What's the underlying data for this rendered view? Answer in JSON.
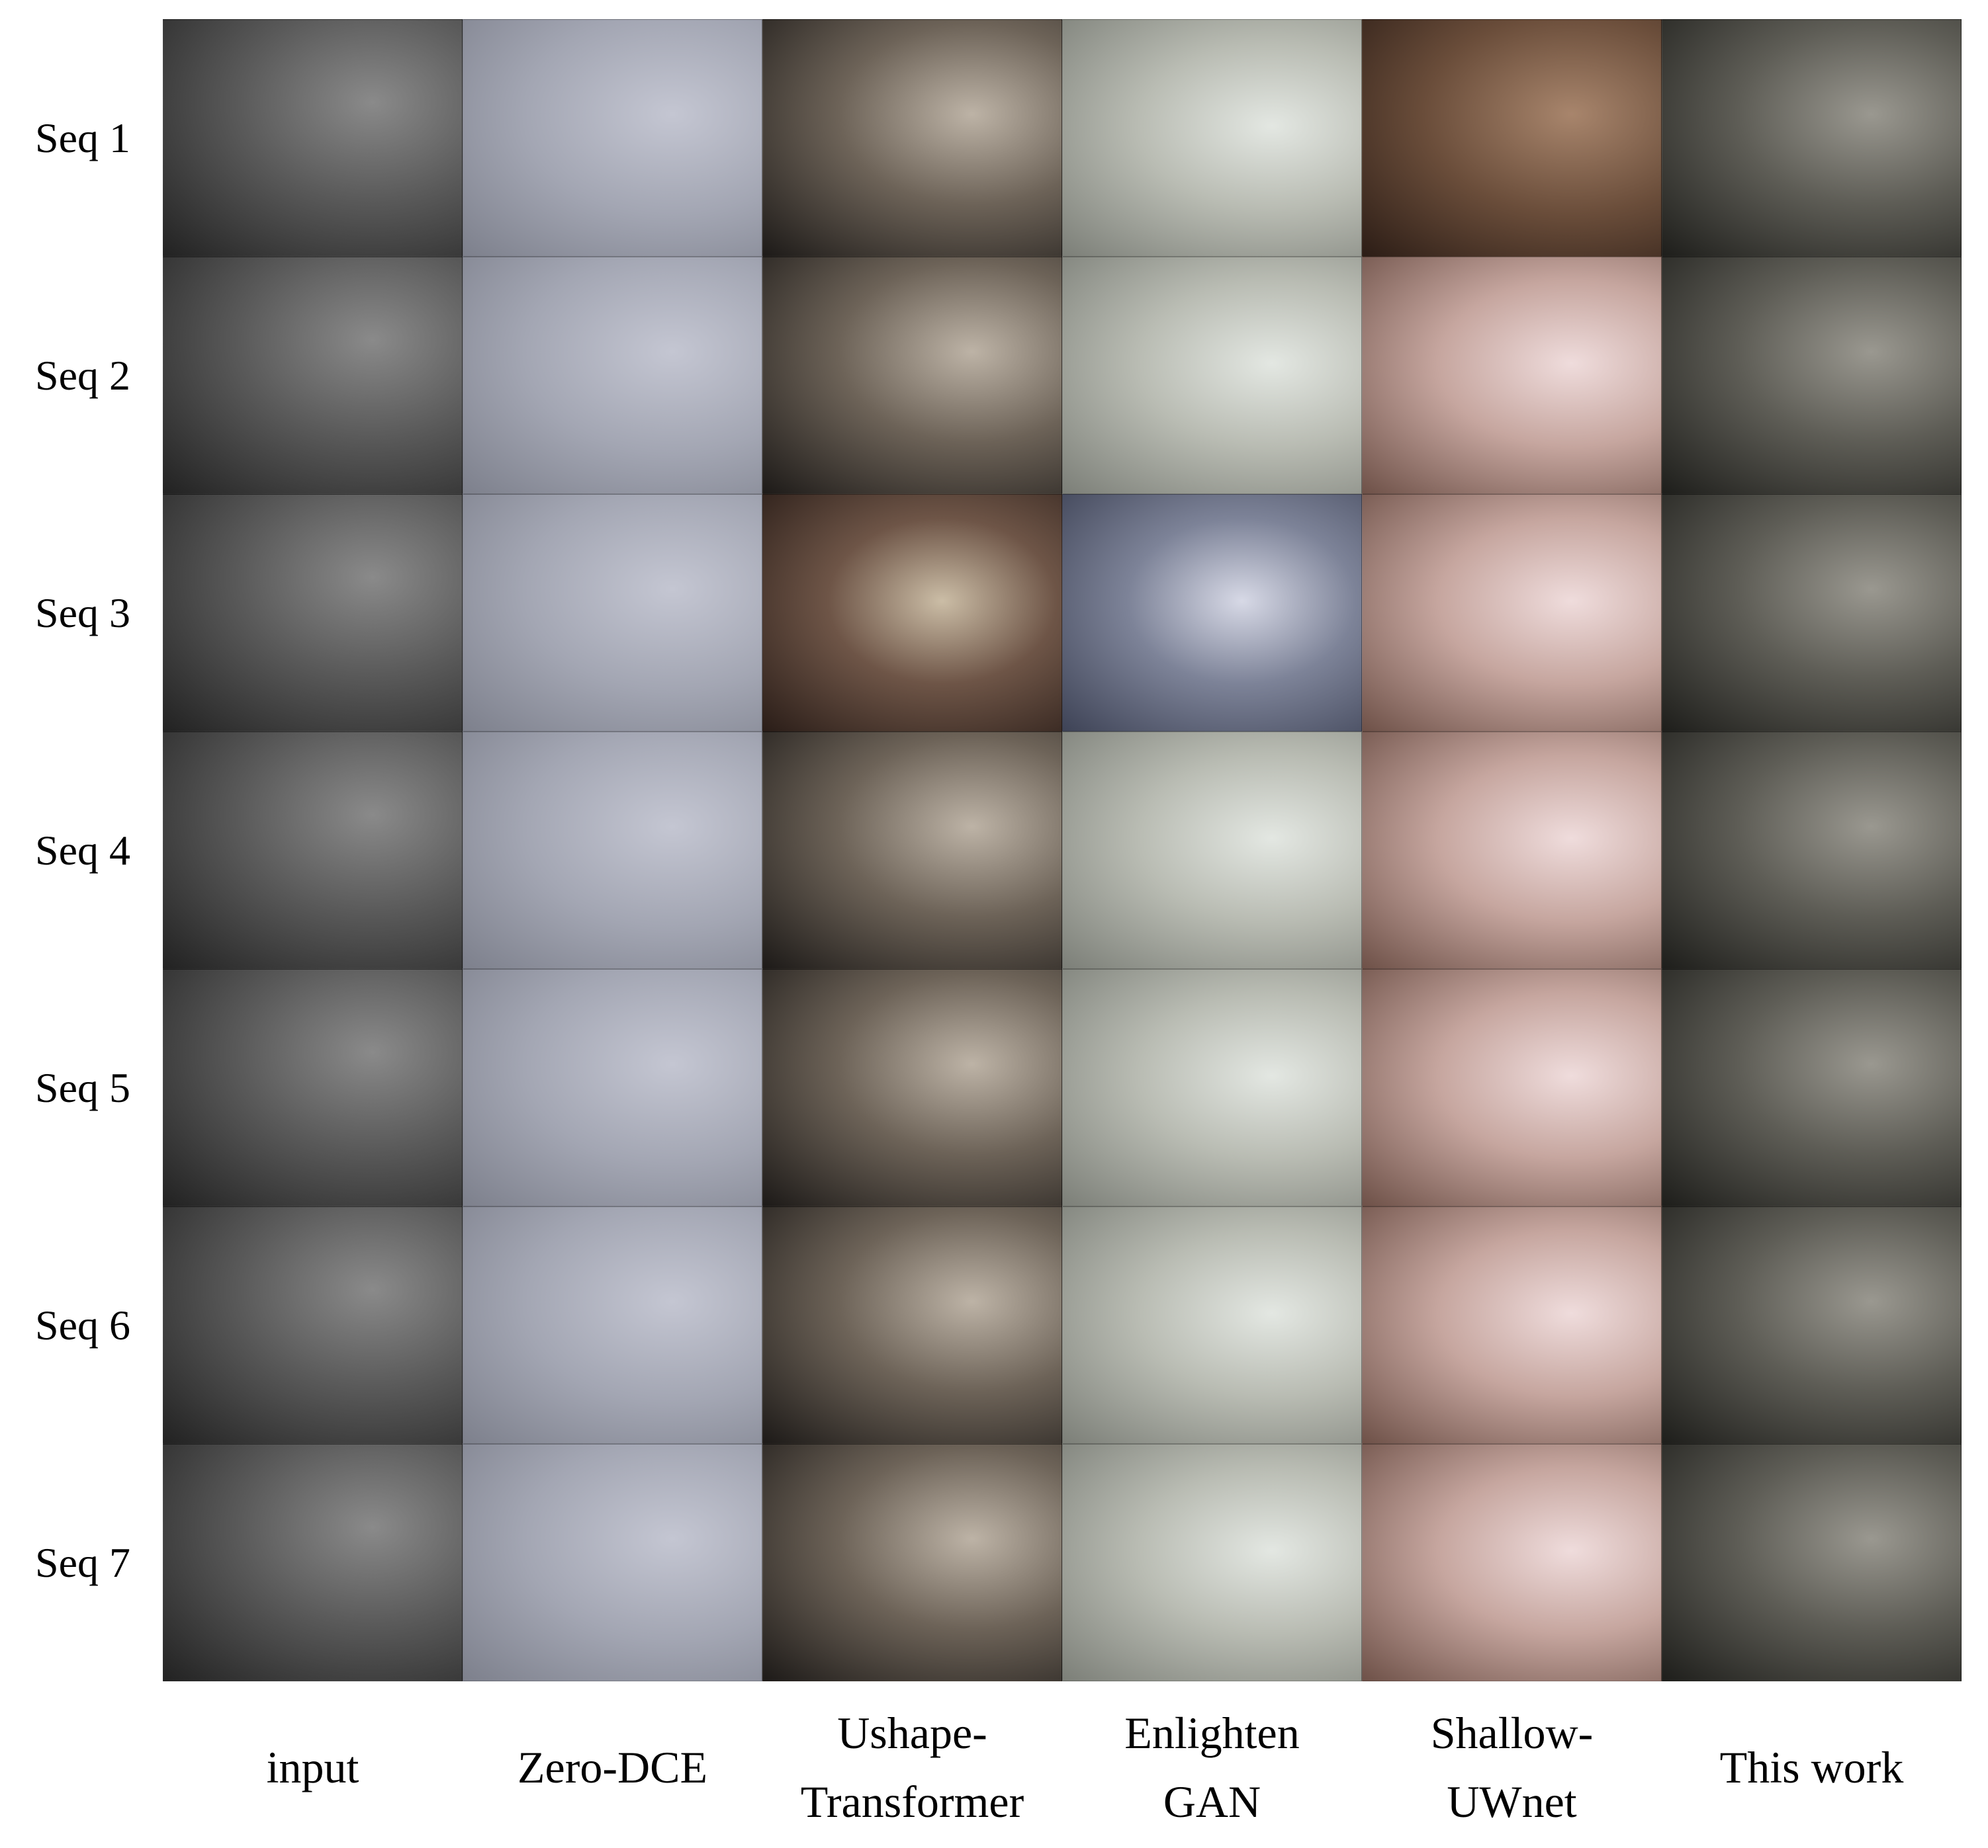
{
  "figure": {
    "rows": [
      "Seq 1",
      "Seq 2",
      "Seq 3",
      "Seq 4",
      "Seq 5",
      "Seq 6",
      "Seq 7"
    ],
    "columns": [
      [
        "input"
      ],
      [
        "Zero-DCE"
      ],
      [
        "Ushape-",
        "Transformer"
      ],
      [
        "Enlighten",
        "GAN"
      ],
      [
        "Shallow-",
        "UWnet"
      ],
      [
        "This work"
      ]
    ]
  }
}
